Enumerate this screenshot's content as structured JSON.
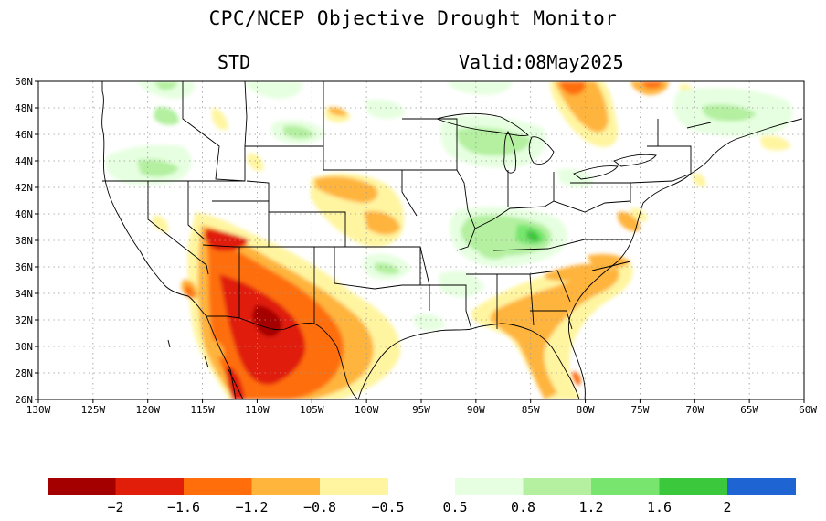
{
  "title": "CPC/NCEP Objective Drought Monitor",
  "subtitle_left": "STD",
  "subtitle_right": "Valid:08May2025",
  "lat_labels": [
    "50N",
    "48N",
    "46N",
    "44N",
    "42N",
    "40N",
    "38N",
    "36N",
    "34N",
    "32N",
    "30N",
    "28N",
    "26N"
  ],
  "lon_labels": [
    "130W",
    "125W",
    "120W",
    "115W",
    "110W",
    "105W",
    "100W",
    "95W",
    "90W",
    "85W",
    "80W",
    "75W",
    "70W",
    "65W",
    "60W"
  ],
  "colorbar_dry": {
    "colors": [
      "#a50000",
      "#e01e0a",
      "#ff6e0a",
      "#ffb43c",
      "#fff5a0"
    ],
    "labels": [
      "−2",
      "−1.6",
      "−1.2",
      "−0.8",
      "−0.5"
    ]
  },
  "colorbar_wet": {
    "colors": [
      "#e6ffe0",
      "#b4f0a0",
      "#78e66e",
      "#3cc83c",
      "#1e64d2"
    ],
    "labels": [
      "0.5",
      "0.8",
      "1.2",
      "1.6",
      "2"
    ]
  }
}
